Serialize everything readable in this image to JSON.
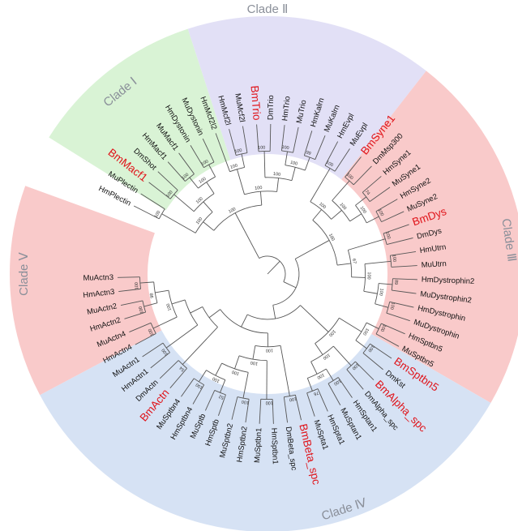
{
  "clade_colors": {
    "green": "#d9f3d5",
    "purple": "#e2e0f6",
    "red": "#f9caca",
    "blue": "#d6e2f4"
  },
  "clades": [
    {
      "label": "Clade Ⅰ"
    },
    {
      "label": "Clade Ⅱ"
    },
    {
      "label": "Clade Ⅲ"
    },
    {
      "label": "Clade Ⅳ"
    },
    {
      "label": "Clade Ⅴ"
    }
  ],
  "leaves": [
    {
      "name": "HmPlectin",
      "hl": false
    },
    {
      "name": "MuPlectin",
      "hl": false
    },
    {
      "name": "BmMacf1",
      "hl": true
    },
    {
      "name": "DmShot",
      "hl": false
    },
    {
      "name": "HmMacf1",
      "hl": false
    },
    {
      "name": "MuMacf1",
      "hl": false
    },
    {
      "name": "HmDystonin",
      "hl": false
    },
    {
      "name": "MuDystonin",
      "hl": false
    },
    {
      "name": "HmMcf2l2",
      "hl": false
    },
    {
      "name": "HmMcf2l",
      "hl": false
    },
    {
      "name": "MuMcf2l",
      "hl": false
    },
    {
      "name": "BmTrio",
      "hl": true
    },
    {
      "name": "DmTrio",
      "hl": false
    },
    {
      "name": "HmTrio",
      "hl": false
    },
    {
      "name": "MuTrio",
      "hl": false
    },
    {
      "name": "HmKalrn",
      "hl": false
    },
    {
      "name": "MuKalrn",
      "hl": false
    },
    {
      "name": "HmEvpl",
      "hl": false
    },
    {
      "name": "MuEvpl",
      "hl": false
    },
    {
      "name": "BmSyne1",
      "hl": true
    },
    {
      "name": "DmMsp300",
      "hl": false
    },
    {
      "name": "HmSyne1",
      "hl": false
    },
    {
      "name": "MuSyne1",
      "hl": false
    },
    {
      "name": "HmSyne2",
      "hl": false
    },
    {
      "name": "MuSyne2",
      "hl": false
    },
    {
      "name": "BmDys",
      "hl": true
    },
    {
      "name": "DmDys",
      "hl": false
    },
    {
      "name": "HmUtrn",
      "hl": false
    },
    {
      "name": "MuUtrn",
      "hl": false
    },
    {
      "name": "HmDystrophin2",
      "hl": false
    },
    {
      "name": "MuDystrophin2",
      "hl": false
    },
    {
      "name": "HmDystrophin",
      "hl": false
    },
    {
      "name": "MuDystrophin",
      "hl": false
    },
    {
      "name": "HmSptbn5",
      "hl": false
    },
    {
      "name": "MuSptbn5",
      "hl": false
    },
    {
      "name": "BmSptbn5",
      "hl": true
    },
    {
      "name": "DmKst",
      "hl": false
    },
    {
      "name": "BmAlpha_spc",
      "hl": true
    },
    {
      "name": "DmAlpha_spc",
      "hl": false
    },
    {
      "name": "HmSptan1",
      "hl": false
    },
    {
      "name": "MuSptan1",
      "hl": false
    },
    {
      "name": "HmSpta1",
      "hl": false
    },
    {
      "name": "MuSpta1",
      "hl": false
    },
    {
      "name": "BmBeta_spc",
      "hl": true
    },
    {
      "name": "DmBeta_spc",
      "hl": false
    },
    {
      "name": "HmSptbn1",
      "hl": false
    },
    {
      "name": "MuSptbn1",
      "hl": false
    },
    {
      "name": "HmSptbn2",
      "hl": false
    },
    {
      "name": "MuSptbn2",
      "hl": false
    },
    {
      "name": "HmSptb",
      "hl": false
    },
    {
      "name": "MuSptb",
      "hl": false
    },
    {
      "name": "HmSptbn4",
      "hl": false
    },
    {
      "name": "MuSptbn4",
      "hl": false
    },
    {
      "name": "BmActn",
      "hl": true
    },
    {
      "name": "DmActn",
      "hl": false
    },
    {
      "name": "HmActn1",
      "hl": false
    },
    {
      "name": "MuActn1",
      "hl": false
    },
    {
      "name": "HmActn4",
      "hl": false
    },
    {
      "name": "MuActn4",
      "hl": false
    },
    {
      "name": "HmActn2",
      "hl": false
    },
    {
      "name": "MuActn2",
      "hl": false
    },
    {
      "name": "HmActn3",
      "hl": false
    },
    {
      "name": "MuActn3",
      "hl": false
    }
  ],
  "bootstrap": [
    "100",
    "100",
    "100",
    "100",
    "100",
    "100",
    "100",
    "100",
    "100",
    "100",
    "100",
    "99",
    "100",
    "100",
    "100",
    "100",
    "100",
    "100",
    "74",
    "100",
    "100",
    "100",
    "100",
    "100",
    "100",
    "89",
    "100",
    "100",
    "100",
    "67",
    "100",
    "100",
    "100",
    "100",
    "100",
    "100",
    "76",
    "100",
    "100",
    "100",
    "100",
    "100",
    "100",
    "52",
    "100",
    "100",
    "100",
    "100",
    "100",
    "54",
    "100",
    "100",
    "100",
    "100",
    "98",
    "100"
  ]
}
